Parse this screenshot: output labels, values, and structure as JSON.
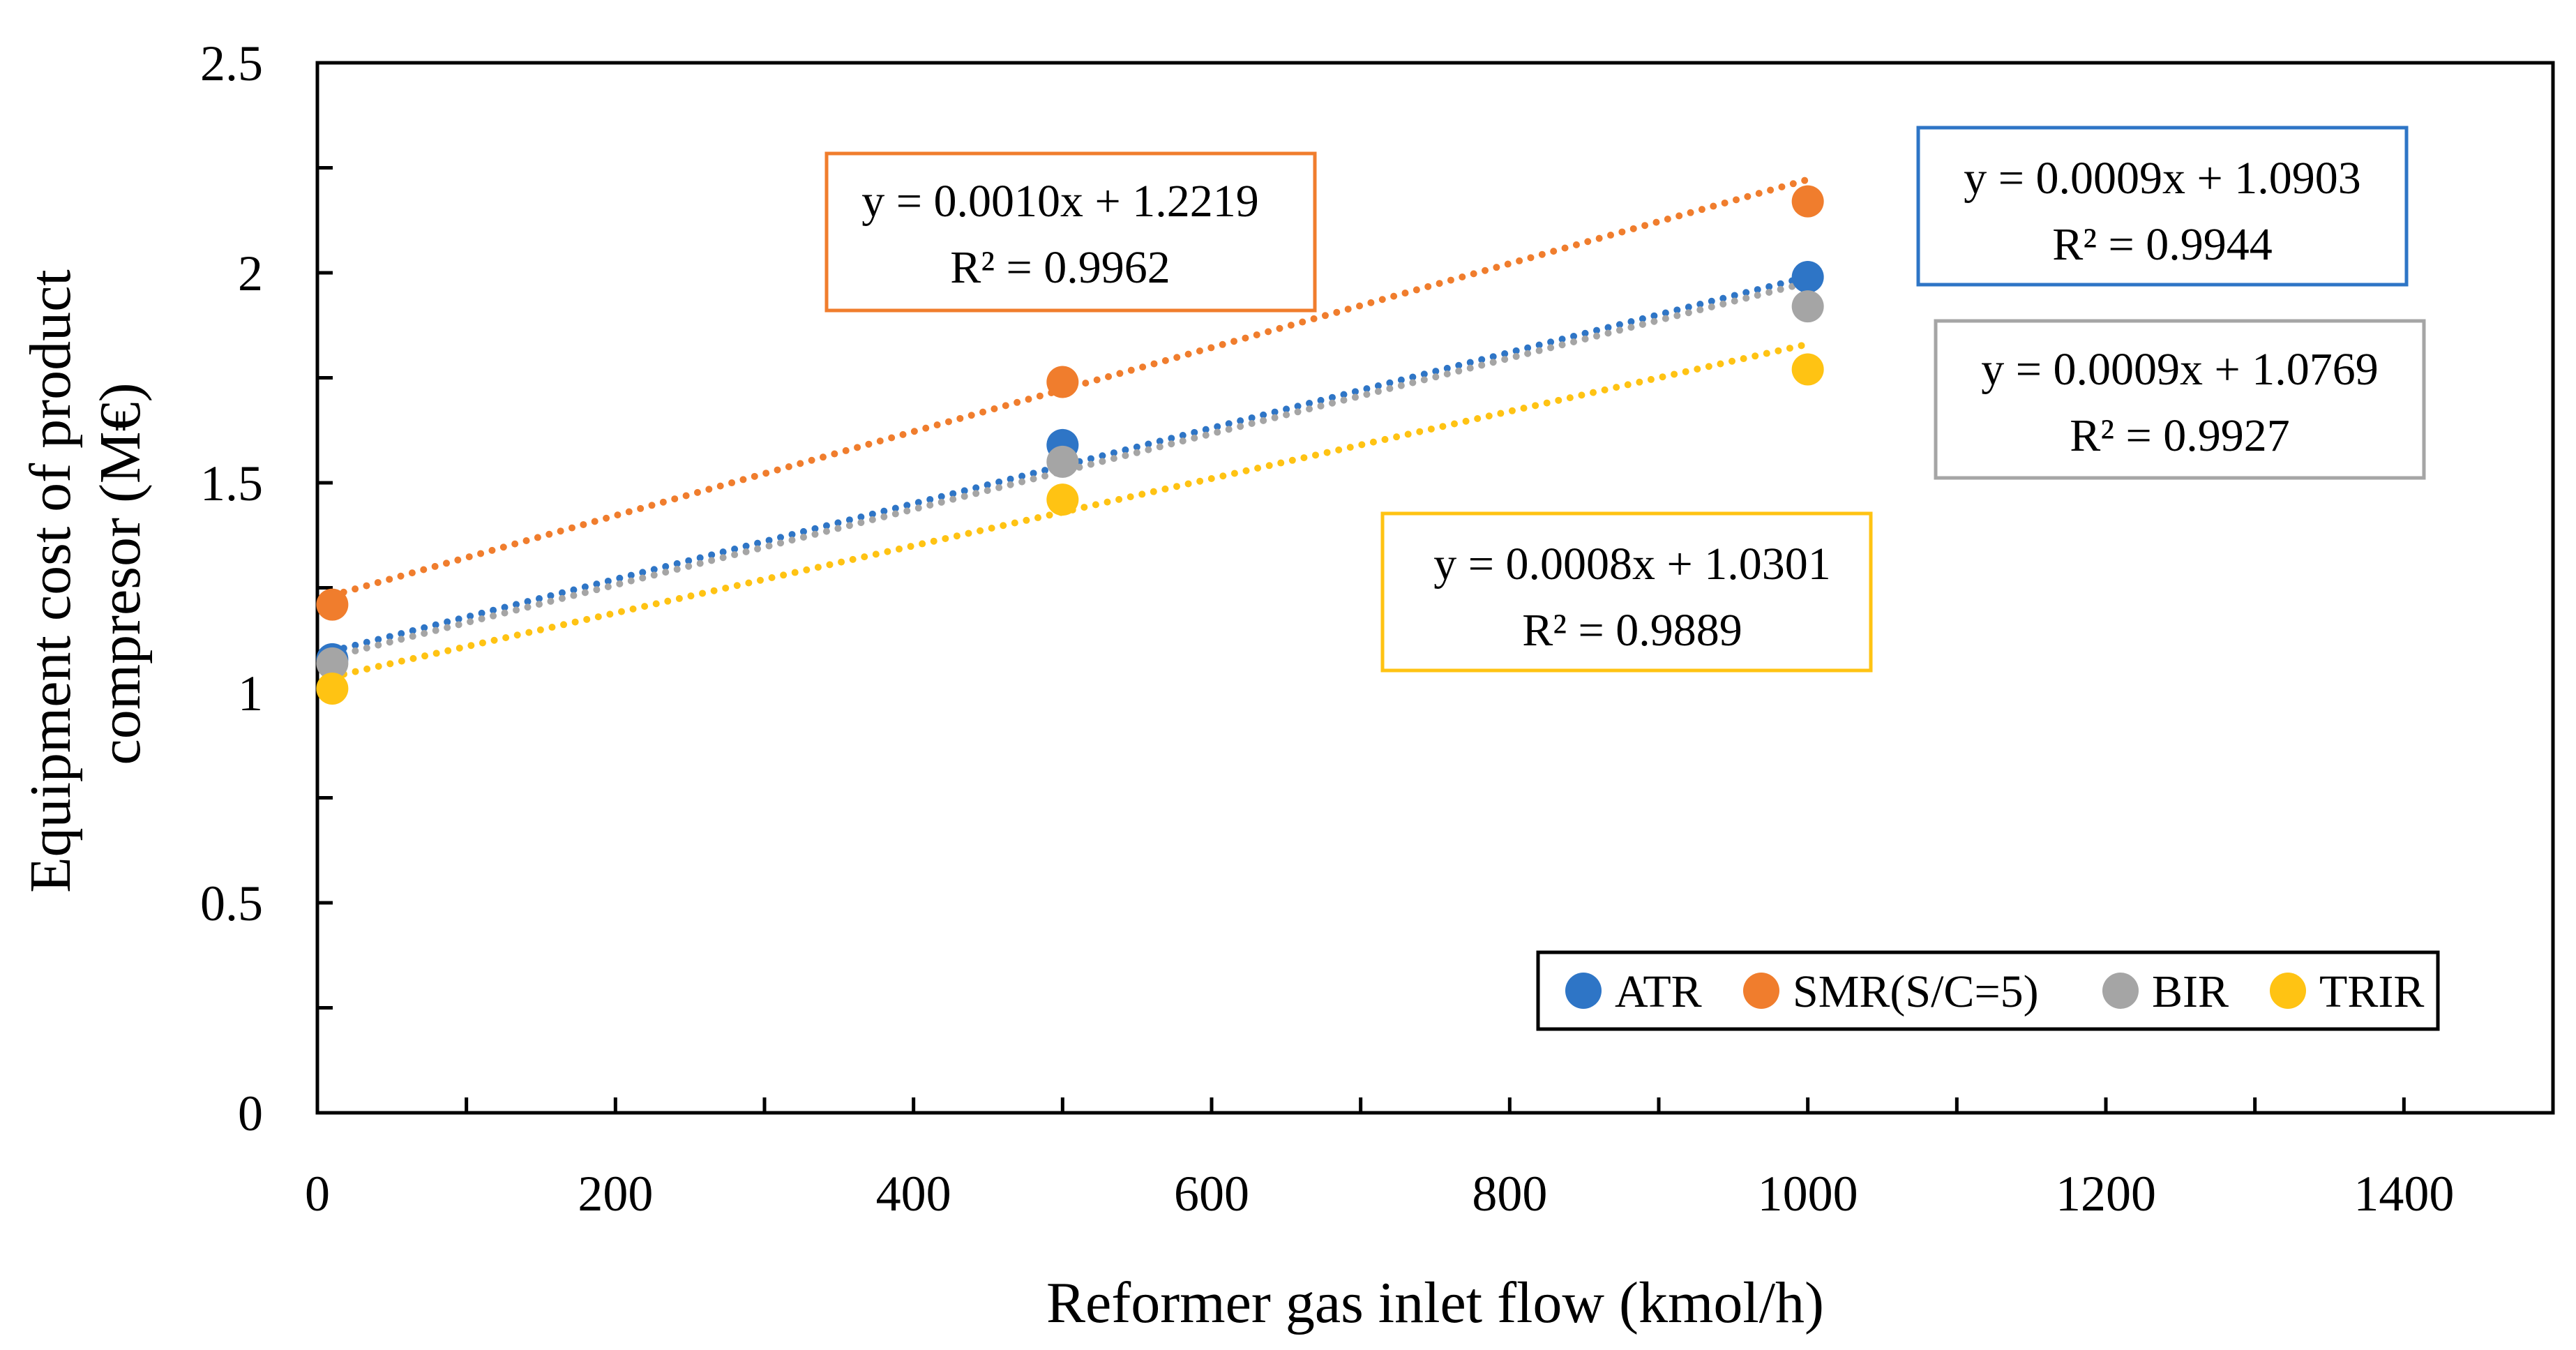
{
  "chart_data": {
    "type": "scatter",
    "title": "",
    "xlabel": "Reformer gas inlet flow (kmol/h)",
    "ylabel_lines": [
      "Equipment cost of product",
      "compresor (M€)"
    ],
    "xlim": [
      0,
      1500
    ],
    "ylim": [
      0,
      2.5
    ],
    "x_ticks": [
      0,
      200,
      400,
      600,
      800,
      1000,
      1200,
      1400
    ],
    "x_tick_labels": [
      "0",
      "200",
      "400",
      "600",
      "800",
      "1000",
      "1200",
      "1400"
    ],
    "y_ticks": [
      0,
      0.5,
      1,
      1.5,
      2,
      2.5
    ],
    "y_tick_labels": [
      "0",
      "0.5",
      "1",
      "1.5",
      "2",
      "2.5"
    ],
    "grid": false,
    "legend_position": "bottom-right",
    "series": [
      {
        "key": "atr",
        "name": "ATR",
        "color": "#2E75C6",
        "x": [
          10,
          500,
          1000
        ],
        "y": [
          1.08,
          1.59,
          1.99
        ],
        "trend": {
          "slope": 0.0009,
          "intercept": 1.0903
        },
        "equation": "y = 0.0009x + 1.0903",
        "r2": "R² = 0.9944"
      },
      {
        "key": "smr",
        "name": "SMR(S/C=5)",
        "color": "#F07D2D",
        "x": [
          10,
          500,
          1000
        ],
        "y": [
          1.21,
          1.74,
          2.17
        ],
        "trend": {
          "slope": 0.001,
          "intercept": 1.2219
        },
        "equation": "y = 0.0010x + 1.2219",
        "r2": "R² = 0.9962"
      },
      {
        "key": "bir",
        "name": "BIR",
        "color": "#A5A5A5",
        "x": [
          10,
          500,
          1000
        ],
        "y": [
          1.07,
          1.55,
          1.92
        ],
        "trend": {
          "slope": 0.0009,
          "intercept": 1.0769
        },
        "equation": "y = 0.0009x + 1.0769",
        "r2": "R² = 0.9927"
      },
      {
        "key": "trir",
        "name": "TRIR",
        "color": "#FFC313",
        "x": [
          10,
          500,
          1000
        ],
        "y": [
          1.01,
          1.46,
          1.77
        ],
        "trend": {
          "slope": 0.0008,
          "intercept": 1.0301
        },
        "equation": "y = 0.0008x + 1.0301",
        "r2": "R² = 0.9889"
      }
    ]
  }
}
